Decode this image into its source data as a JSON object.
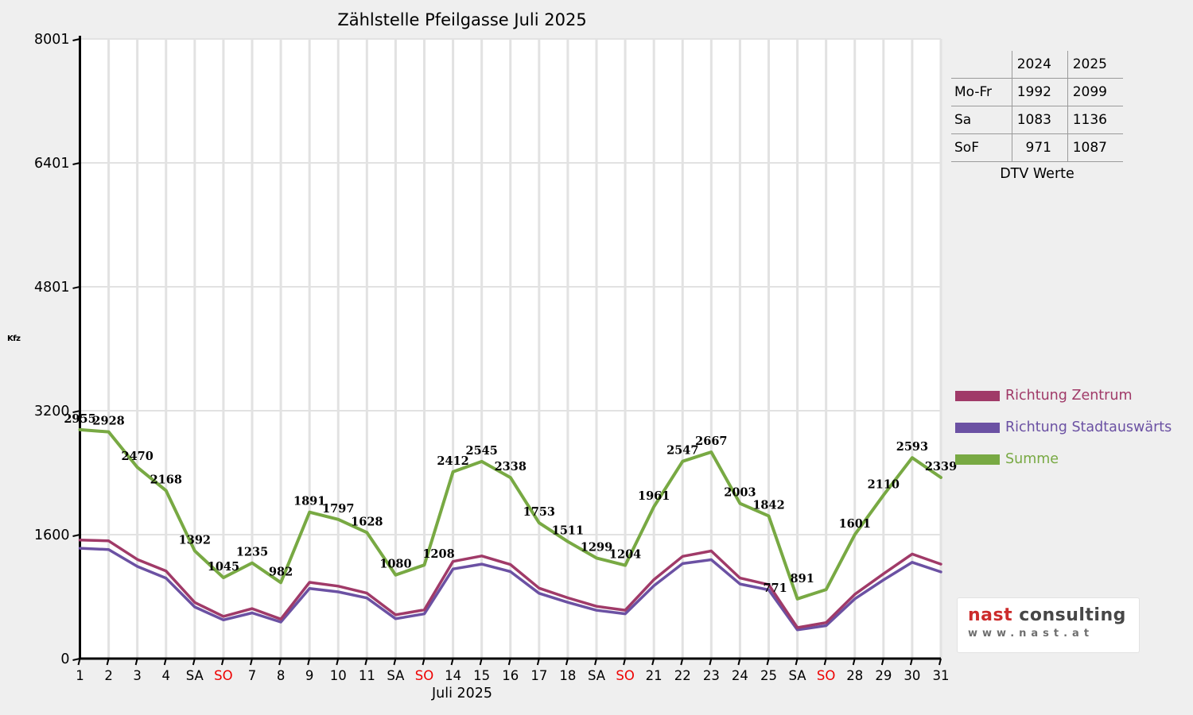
{
  "title": "Zählstelle Pfeilgasse Juli 2025",
  "colors": {
    "background": "#efefef",
    "plot_background": "#ffffff",
    "gridline": "#e2e2e2",
    "axis": "#000000",
    "sunday_red": "#ee0000",
    "table_line": "#9a9a9a",
    "data_label": "#000000"
  },
  "chart_data": {
    "type": "line",
    "title": "Zählstelle Pfeilgasse Juli 2025",
    "xlabel": "Juli 2025",
    "ylabel": "Kfz",
    "x_labels": [
      "1",
      "2",
      "3",
      "4",
      "SA",
      "SO",
      "7",
      "8",
      "9",
      "10",
      "11",
      "SA",
      "SO",
      "14",
      "15",
      "16",
      "17",
      "18",
      "SA",
      "SO",
      "21",
      "22",
      "23",
      "24",
      "25",
      "SA",
      "SO",
      "28",
      "29",
      "30",
      "31"
    ],
    "sunday_label": "SO",
    "y_ticks": [
      0,
      1600,
      3200,
      4801,
      6401,
      8001
    ],
    "y_tick_labels": [
      "0",
      "1600",
      "3200",
      "4801",
      "6401",
      "8001"
    ],
    "ylim": [
      0,
      8001
    ],
    "grid": true,
    "legend_position": "right",
    "series": [
      {
        "name": "Richtung Zentrum",
        "color": "#a03a68",
        "width": 3.5,
        "estimated": true,
        "values": [
          1530,
          1520,
          1280,
          1130,
          725,
          545,
          645,
          510,
          985,
          935,
          845,
          565,
          630,
          1255,
          1325,
          1215,
          910,
          785,
          675,
          625,
          1020,
          1320,
          1390,
          1040,
          955,
          400,
          465,
          830,
          1095,
          1350,
          1220
        ]
      },
      {
        "name": "Richtung Stadtauswärts",
        "color": "#6b51a3",
        "width": 3.5,
        "estimated": true,
        "values": [
          1425,
          1408,
          1190,
          1038,
          667,
          500,
          590,
          472,
          906,
          862,
          783,
          515,
          578,
          1157,
          1220,
          1123,
          843,
          726,
          624,
          579,
          941,
          1227,
          1277,
          963,
          887,
          371,
          426,
          771,
          1015,
          1243,
          1119
        ]
      },
      {
        "name": "Summe",
        "color": "#78a943",
        "width": 4,
        "data_labels": true,
        "values": [
          2955,
          2928,
          2470,
          2168,
          1392,
          1045,
          1235,
          982,
          1891,
          1797,
          1628,
          1080,
          1208,
          2412,
          2545,
          2338,
          1753,
          1511,
          1299,
          1204,
          1961,
          2547,
          2667,
          2003,
          1842,
          771,
          891,
          1601,
          2110,
          2593,
          2339
        ]
      }
    ],
    "label_dx": {
      "12": 18,
      "25": -28,
      "26": -30
    }
  },
  "dtv_table": {
    "caption": "DTV Werte",
    "col_headers": [
      "2024",
      "2025"
    ],
    "rows": [
      {
        "label": "Mo-Fr",
        "y2024": "1992",
        "y2025": "2099"
      },
      {
        "label": "Sa",
        "y2024": "1083",
        "y2025": "1136"
      },
      {
        "label": "SoF",
        "y2024": "971",
        "y2025": "1087"
      }
    ]
  },
  "legend": {
    "items": [
      {
        "label": "Richtung Zentrum",
        "color": "#a03a68"
      },
      {
        "label": "Richtung Stadtauswärts",
        "color": "#6b51a3"
      },
      {
        "label": "Summe",
        "color": "#78a943"
      }
    ]
  },
  "logo": {
    "brand_primary": "nast",
    "brand_secondary": "consulting",
    "url": "www.nast.at",
    "primary_color": "#cc2b2b",
    "secondary_color": "#474747"
  }
}
